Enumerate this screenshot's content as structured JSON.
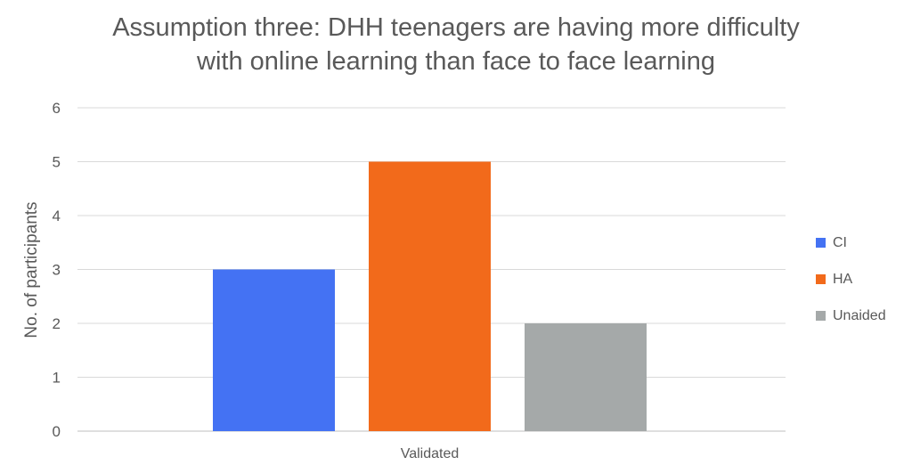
{
  "chart_data": {
    "type": "bar",
    "title_lines": [
      "Assumption three: DHH teenagers are having more difficulty",
      "with online learning than face to face learning"
    ],
    "xlabel": "",
    "ylabel": "No. of participants",
    "categories": [
      "Validated"
    ],
    "series": [
      {
        "name": "CI",
        "values": [
          3
        ],
        "color": "#4472F3"
      },
      {
        "name": "HA",
        "values": [
          5
        ],
        "color": "#F26A1B"
      },
      {
        "name": "Unaided",
        "values": [
          2
        ],
        "color": "#A5A9A9"
      }
    ],
    "ylim": [
      0,
      6
    ],
    "yticks": [
      "0",
      "1",
      "2",
      "3",
      "4",
      "5",
      "6"
    ],
    "grid": true,
    "legend_position": "right"
  }
}
